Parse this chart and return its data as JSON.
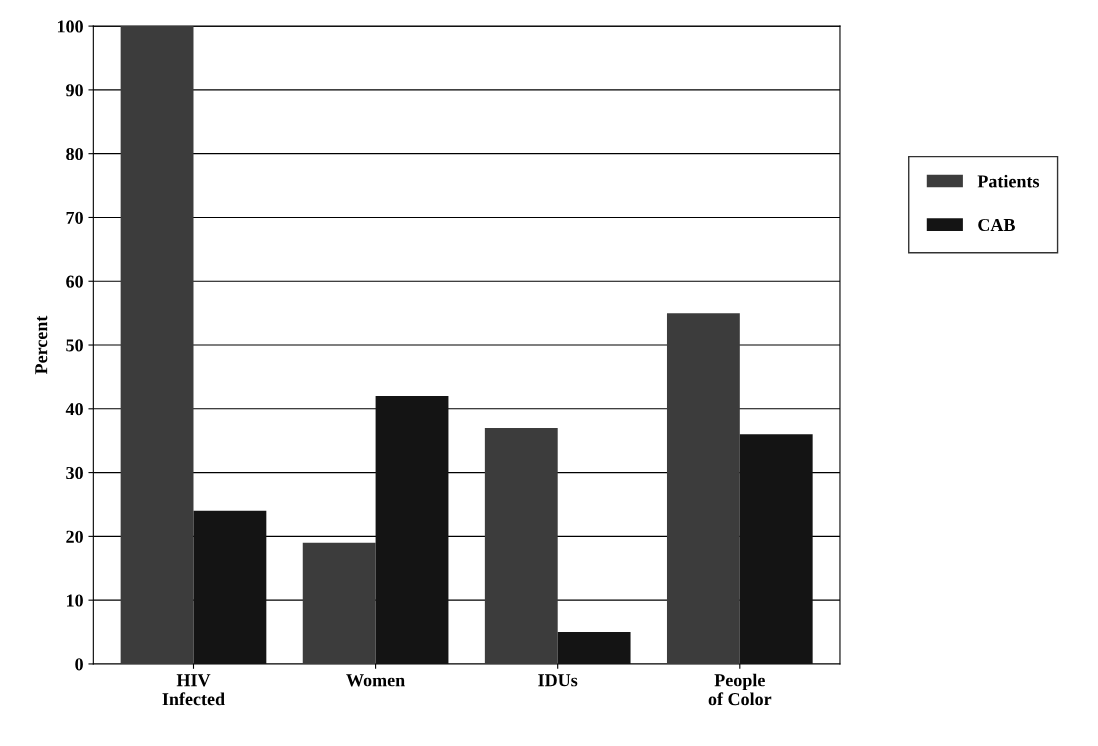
{
  "chart_data": {
    "type": "bar",
    "ylabel": "Percent",
    "categories": [
      "HIV\nInfected",
      "Women",
      "IDUs",
      "People\nof Color"
    ],
    "series": [
      {
        "name": "Patients",
        "color": "#3c3c3c",
        "values": [
          100,
          19,
          37,
          55
        ]
      },
      {
        "name": "CAB",
        "color": "#141414",
        "values": [
          24,
          42,
          5,
          36
        ]
      }
    ],
    "ylim": [
      0,
      100
    ],
    "yticks": [
      0,
      10,
      20,
      30,
      40,
      50,
      60,
      70,
      80,
      90,
      100
    ],
    "grid": "y",
    "legend": "right"
  }
}
